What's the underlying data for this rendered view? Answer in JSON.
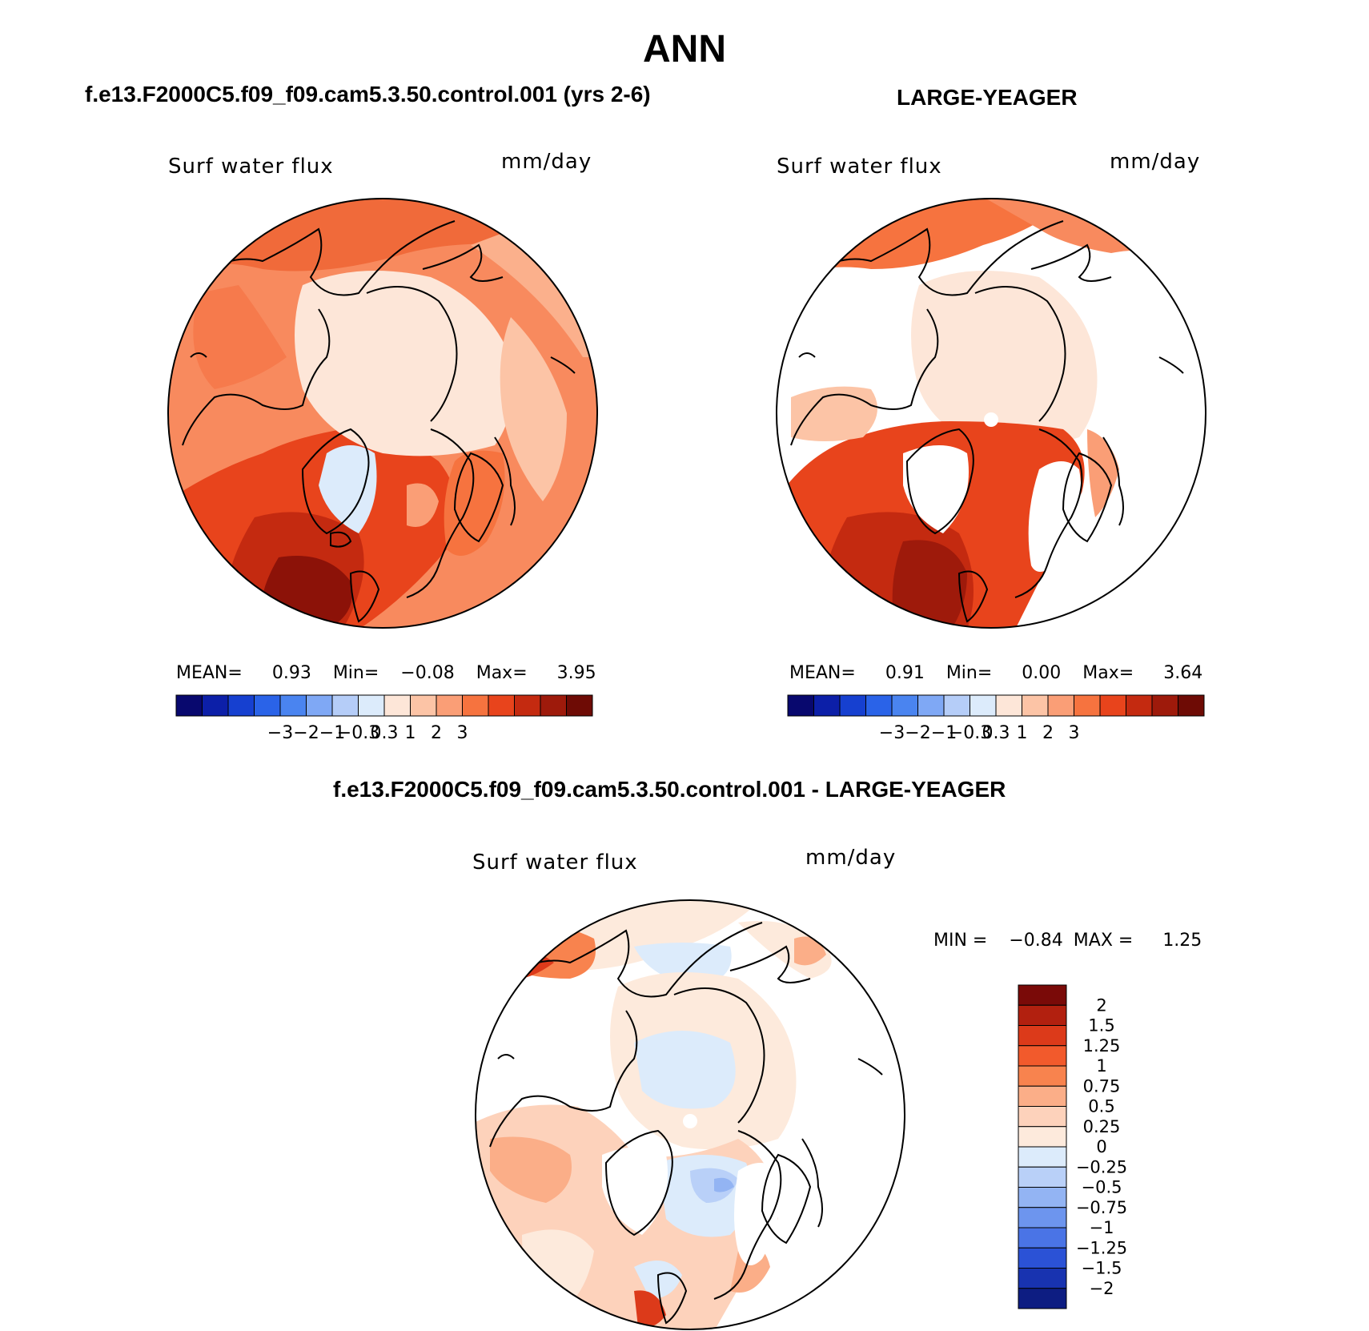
{
  "page": {
    "title": "ANN",
    "left_title": "f.e13.F2000C5.f09_f09.cam5.3.50.control.001 (yrs 2-6)",
    "right_title": "LARGE-YEAGER",
    "diff_title": "f.e13.F2000C5.f09_f09.cam5.3.50.control.001 - LARGE-YEAGER"
  },
  "panels": {
    "left": {
      "variable": "Surf water flux",
      "units": "mm/day",
      "mean_label": "MEAN=",
      "mean": "0.93",
      "min_label": "Min=",
      "min": "−0.08",
      "max_label": "Max=",
      "max": "3.95"
    },
    "right": {
      "variable": "Surf water flux",
      "units": "mm/day",
      "mean_label": "MEAN=",
      "mean": "0.91",
      "min_label": "Min=",
      "min": "0.00",
      "max_label": "Max=",
      "max": "3.64"
    },
    "diff": {
      "variable": "Surf water flux",
      "units": "mm/day",
      "min_label": "MIN =",
      "min": "−0.84",
      "max_label": "MAX =",
      "max": "1.25"
    }
  },
  "colorbar_h": {
    "colors": [
      "#08086e",
      "#0c1fa8",
      "#1640d0",
      "#2a63e8",
      "#4a84f0",
      "#7fa8f5",
      "#b5cdf8",
      "#dcebfb",
      "#fde6d8",
      "#fcc4a6",
      "#fa9e76",
      "#f6733f",
      "#e8441c",
      "#c42a10",
      "#9e1a0b",
      "#6e0b05"
    ],
    "ticks": [
      "−3",
      "−2",
      "−1",
      "−0.3",
      "0.3",
      "1",
      "2",
      "3"
    ]
  },
  "colorbar_v": {
    "colors": [
      "#7a0a08",
      "#b2200f",
      "#dc3a1a",
      "#f25a2c",
      "#f8834e",
      "#fbae88",
      "#fdd2bb",
      "#fdeadc",
      "#dcebfb",
      "#b9d0f8",
      "#93b4f3",
      "#6d95ee",
      "#4a74e6",
      "#2b52d6",
      "#1833b0",
      "#0d1d82"
    ],
    "ticks": [
      "2",
      "1.5",
      "1.25",
      "1",
      "0.75",
      "0.5",
      "0.25",
      "0",
      "−0.25",
      "−0.5",
      "−0.75",
      "−1",
      "−1.25",
      "−1.5",
      "−2"
    ]
  }
}
